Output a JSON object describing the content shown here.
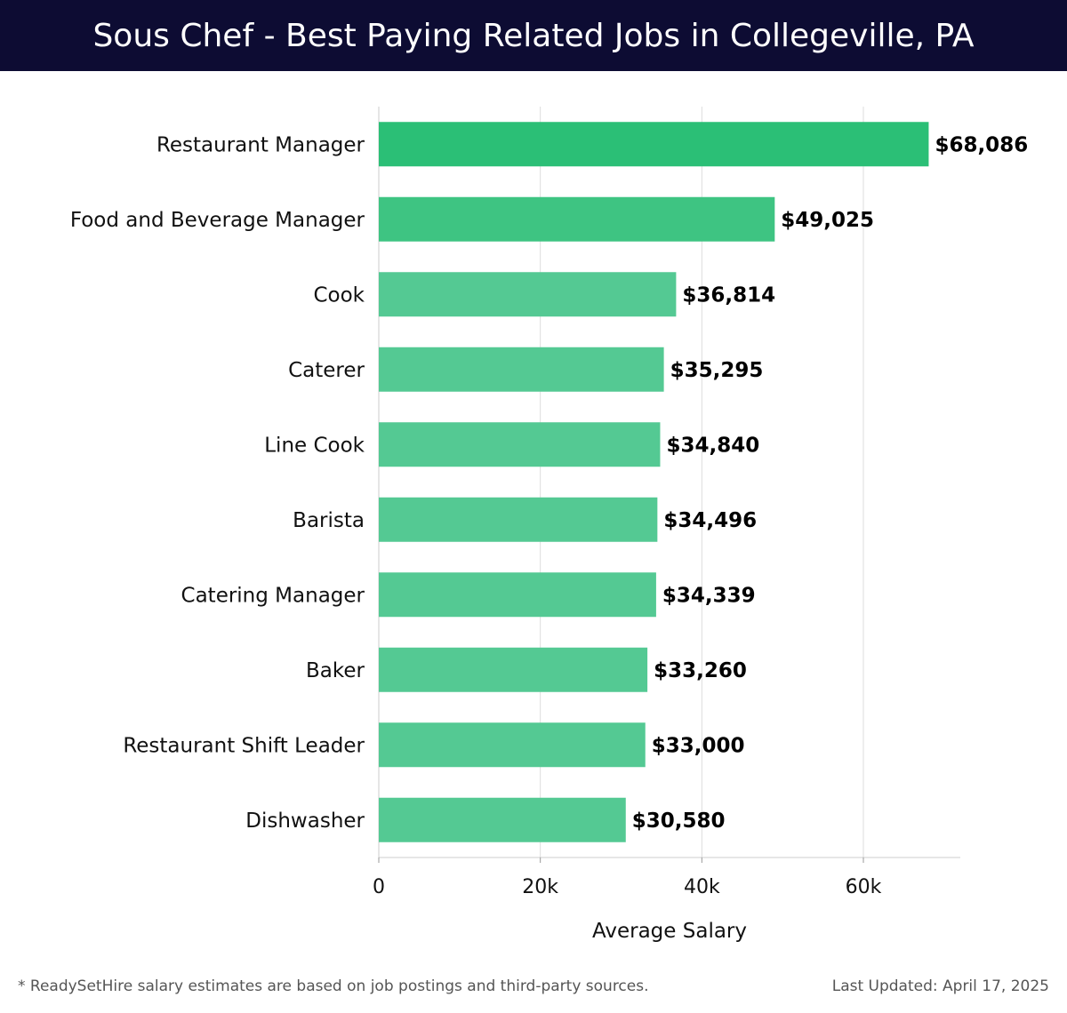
{
  "header": {
    "title": "Sous Chef - Best Paying Related Jobs in Collegeville, PA"
  },
  "chart_data": {
    "type": "bar",
    "orientation": "horizontal",
    "title": "Sous Chef - Best Paying Related Jobs in Collegeville, PA",
    "xlabel": "Average Salary",
    "ylabel": "",
    "xlim": [
      0,
      72000
    ],
    "xticks": [
      0,
      20000,
      40000,
      60000
    ],
    "xtick_labels": [
      "0",
      "20k",
      "40k",
      "60k"
    ],
    "grid": "vertical",
    "categories": [
      "Restaurant Manager",
      "Food and Beverage Manager",
      "Cook",
      "Caterer",
      "Line Cook",
      "Barista",
      "Catering Manager",
      "Baker",
      "Restaurant Shift Leader",
      "Dishwasher"
    ],
    "values": [
      68086,
      49025,
      36814,
      35295,
      34840,
      34496,
      34339,
      33260,
      33000,
      30580
    ],
    "value_labels": [
      "$68,086",
      "$49,025",
      "$36,814",
      "$35,295",
      "$34,840",
      "$34,496",
      "$34,339",
      "$33,260",
      "$33,000",
      "$30,580"
    ],
    "colors": {
      "highlight": "#2bbf76",
      "medium": "#3ec482",
      "base": "#54c993"
    }
  },
  "footer": {
    "note": "* ReadySetHire salary estimates are based on job postings and third-party sources.",
    "updated": "Last Updated: April 17, 2025"
  }
}
